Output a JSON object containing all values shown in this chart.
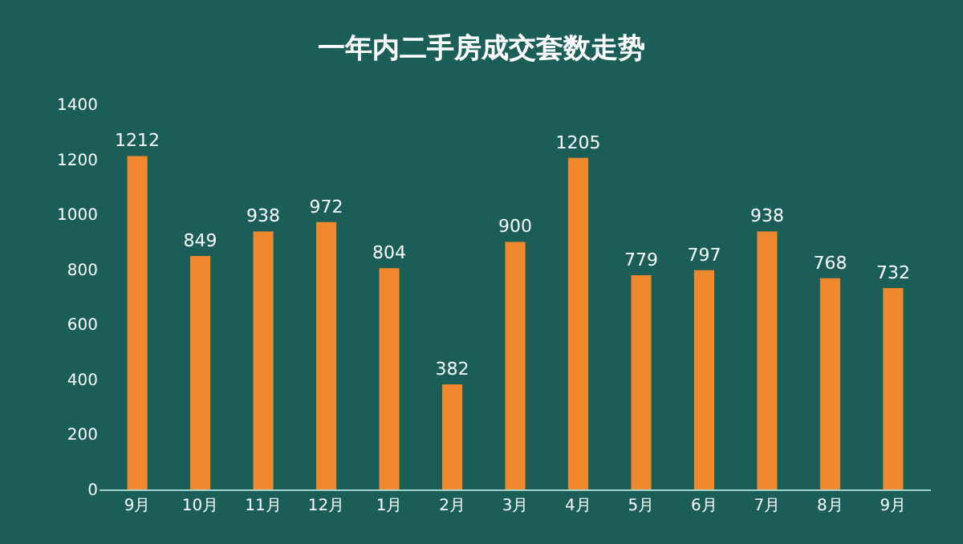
{
  "chart_data": {
    "type": "bar",
    "title": "一年内二手房成交套数走势",
    "categories": [
      "9月",
      "10月",
      "11月",
      "12月",
      "1月",
      "2月",
      "3月",
      "4月",
      "5月",
      "6月",
      "7月",
      "8月",
      "9月"
    ],
    "values": [
      1212,
      849,
      938,
      972,
      804,
      382,
      900,
      1205,
      779,
      797,
      938,
      768,
      732
    ],
    "color": "#f0882e",
    "ylim": [
      0,
      1400
    ],
    "yticks": [
      0,
      200,
      400,
      600,
      800,
      1000,
      1200,
      1400
    ],
    "grid": false,
    "data_labels": true
  }
}
